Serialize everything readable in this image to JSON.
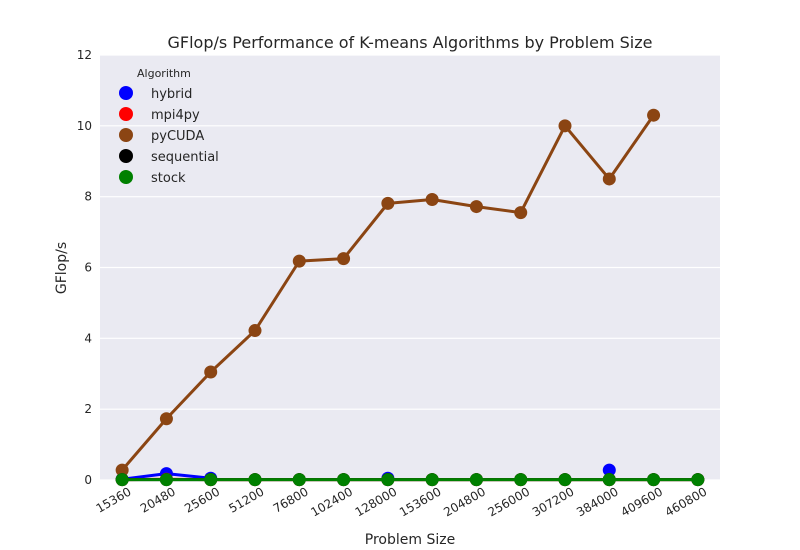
{
  "chart_data": {
    "type": "line",
    "title": "GFlop/s Performance of K-means Algorithms by Problem Size",
    "xlabel": "Problem Size",
    "ylabel": "GFlop/s",
    "ylim": [
      0,
      12
    ],
    "yticks": [
      "0",
      "2",
      "4",
      "6",
      "8",
      "10",
      "12"
    ],
    "grid": true,
    "legend_placement": "top-left",
    "legend_title": "Algorithm",
    "categories": [
      "15360",
      "20480",
      "25600",
      "51200",
      "76800",
      "102400",
      "128000",
      "153600",
      "204800",
      "256000",
      "307200",
      "384000",
      "409600",
      "460800"
    ],
    "series": [
      {
        "name": "hybrid",
        "color": "#0000ff",
        "values": [
          0.02,
          0.18,
          0.05,
          null,
          null,
          null,
          0.05,
          null,
          null,
          null,
          null,
          0.28,
          null,
          null
        ]
      },
      {
        "name": "mpi4py",
        "color": "#ff0000",
        "values": [
          0.01,
          0.02,
          0.01,
          0.01,
          0.01,
          0.01,
          0.01,
          0.01,
          0.01,
          0.01,
          0.01,
          0.01,
          0.01,
          0.01
        ]
      },
      {
        "name": "pyCUDA",
        "color": "#8b4513",
        "values": [
          0.28,
          1.73,
          3.05,
          4.22,
          6.18,
          6.25,
          7.81,
          7.92,
          7.72,
          7.55,
          10.0,
          8.5,
          10.3,
          null
        ]
      },
      {
        "name": "sequential",
        "color": "#000000",
        "values": [
          0.01,
          0.01,
          0.01,
          0.01,
          0.01,
          0.01,
          0.01,
          0.01,
          0.01,
          0.01,
          0.01,
          0.01,
          0.01,
          0.01
        ]
      },
      {
        "name": "stock",
        "color": "#008000",
        "values": [
          0.01,
          0.01,
          0.01,
          0.01,
          0.01,
          0.01,
          0.01,
          0.01,
          0.01,
          0.01,
          0.01,
          0.01,
          0.01,
          0.01
        ]
      }
    ]
  }
}
